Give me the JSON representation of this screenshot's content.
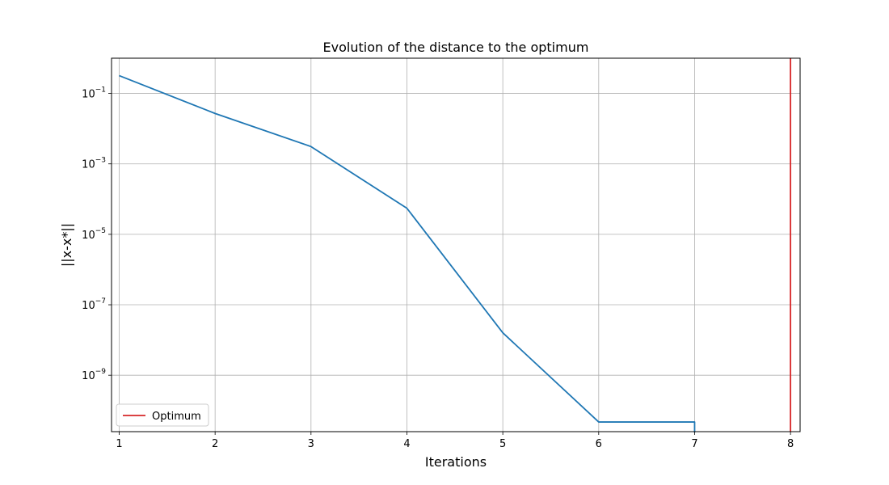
{
  "chart_data": {
    "type": "line",
    "title": "Evolution of the distance to the optimum",
    "xlabel": "Iterations",
    "ylabel": "||x-x*||",
    "xlim": [
      0.92,
      8.1
    ],
    "ylim": [
      2.5e-11,
      1.0
    ],
    "yscale": "log",
    "grid": true,
    "x_ticks": [
      1,
      2,
      3,
      4,
      5,
      6,
      7,
      8
    ],
    "y_ticks": [
      {
        "value": 0.1,
        "base": "10",
        "exp": "−1"
      },
      {
        "value": 0.001,
        "base": "10",
        "exp": "−3"
      },
      {
        "value": 1e-05,
        "base": "10",
        "exp": "−5"
      },
      {
        "value": 1e-07,
        "base": "10",
        "exp": "−7"
      },
      {
        "value": 1e-09,
        "base": "10",
        "exp": "−9"
      }
    ],
    "series": [
      {
        "color": "#1f77b4",
        "x": [
          1,
          2,
          3,
          4,
          5,
          6,
          7
        ],
        "y": [
          0.32,
          0.027,
          0.0031,
          5.5e-05,
          1.6e-08,
          4.7e-11,
          4.7e-11
        ],
        "drop_at_end": true
      }
    ],
    "vlines": [
      {
        "name": "Optimum",
        "x": 8,
        "color": "#d62728"
      }
    ],
    "legend": {
      "placement": "lower-left",
      "entries": [
        {
          "label": "Optimum",
          "color": "#d62728"
        }
      ]
    }
  }
}
